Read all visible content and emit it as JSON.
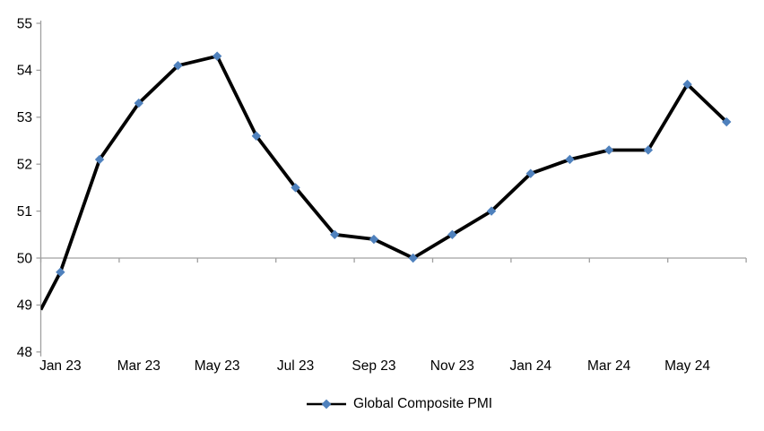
{
  "chart_data": {
    "type": "line",
    "title": "",
    "series_name": "Global Composite PMI",
    "x": [
      "Jan 23",
      "Feb 23",
      "Mar 23",
      "Apr 23",
      "May 23",
      "Jun 23",
      "Jul 23",
      "Aug 23",
      "Sep 23",
      "Oct 23",
      "Nov 23",
      "Dec 23",
      "Jan 24",
      "Feb 24",
      "Mar 24",
      "Apr 24",
      "May 24",
      "Jun 24"
    ],
    "values": [
      49.7,
      52.1,
      53.3,
      54.1,
      54.3,
      52.6,
      51.5,
      50.5,
      50.4,
      50.0,
      50.5,
      51.0,
      51.8,
      52.1,
      52.3,
      52.3,
      53.7,
      52.9
    ],
    "edge_start_value": 48.9,
    "ylim": [
      48,
      55
    ],
    "y_ticks": [
      48,
      49,
      50,
      51,
      52,
      53,
      54,
      55
    ],
    "x_tick_labels": [
      "Jan 23",
      "Mar 23",
      "May 23",
      "Jul 23",
      "Sep 23",
      "Nov 23",
      "Jan 24",
      "Mar 24",
      "May 24"
    ],
    "axis_cross_y": 50,
    "grid": "off",
    "legend": {
      "label": "Global Composite PMI",
      "position": "bottom-center",
      "marker": "diamond"
    },
    "colors": {
      "line": "#000000",
      "marker": "#4f81bd",
      "axis": "#a0a0a0",
      "text": "#000000"
    }
  }
}
